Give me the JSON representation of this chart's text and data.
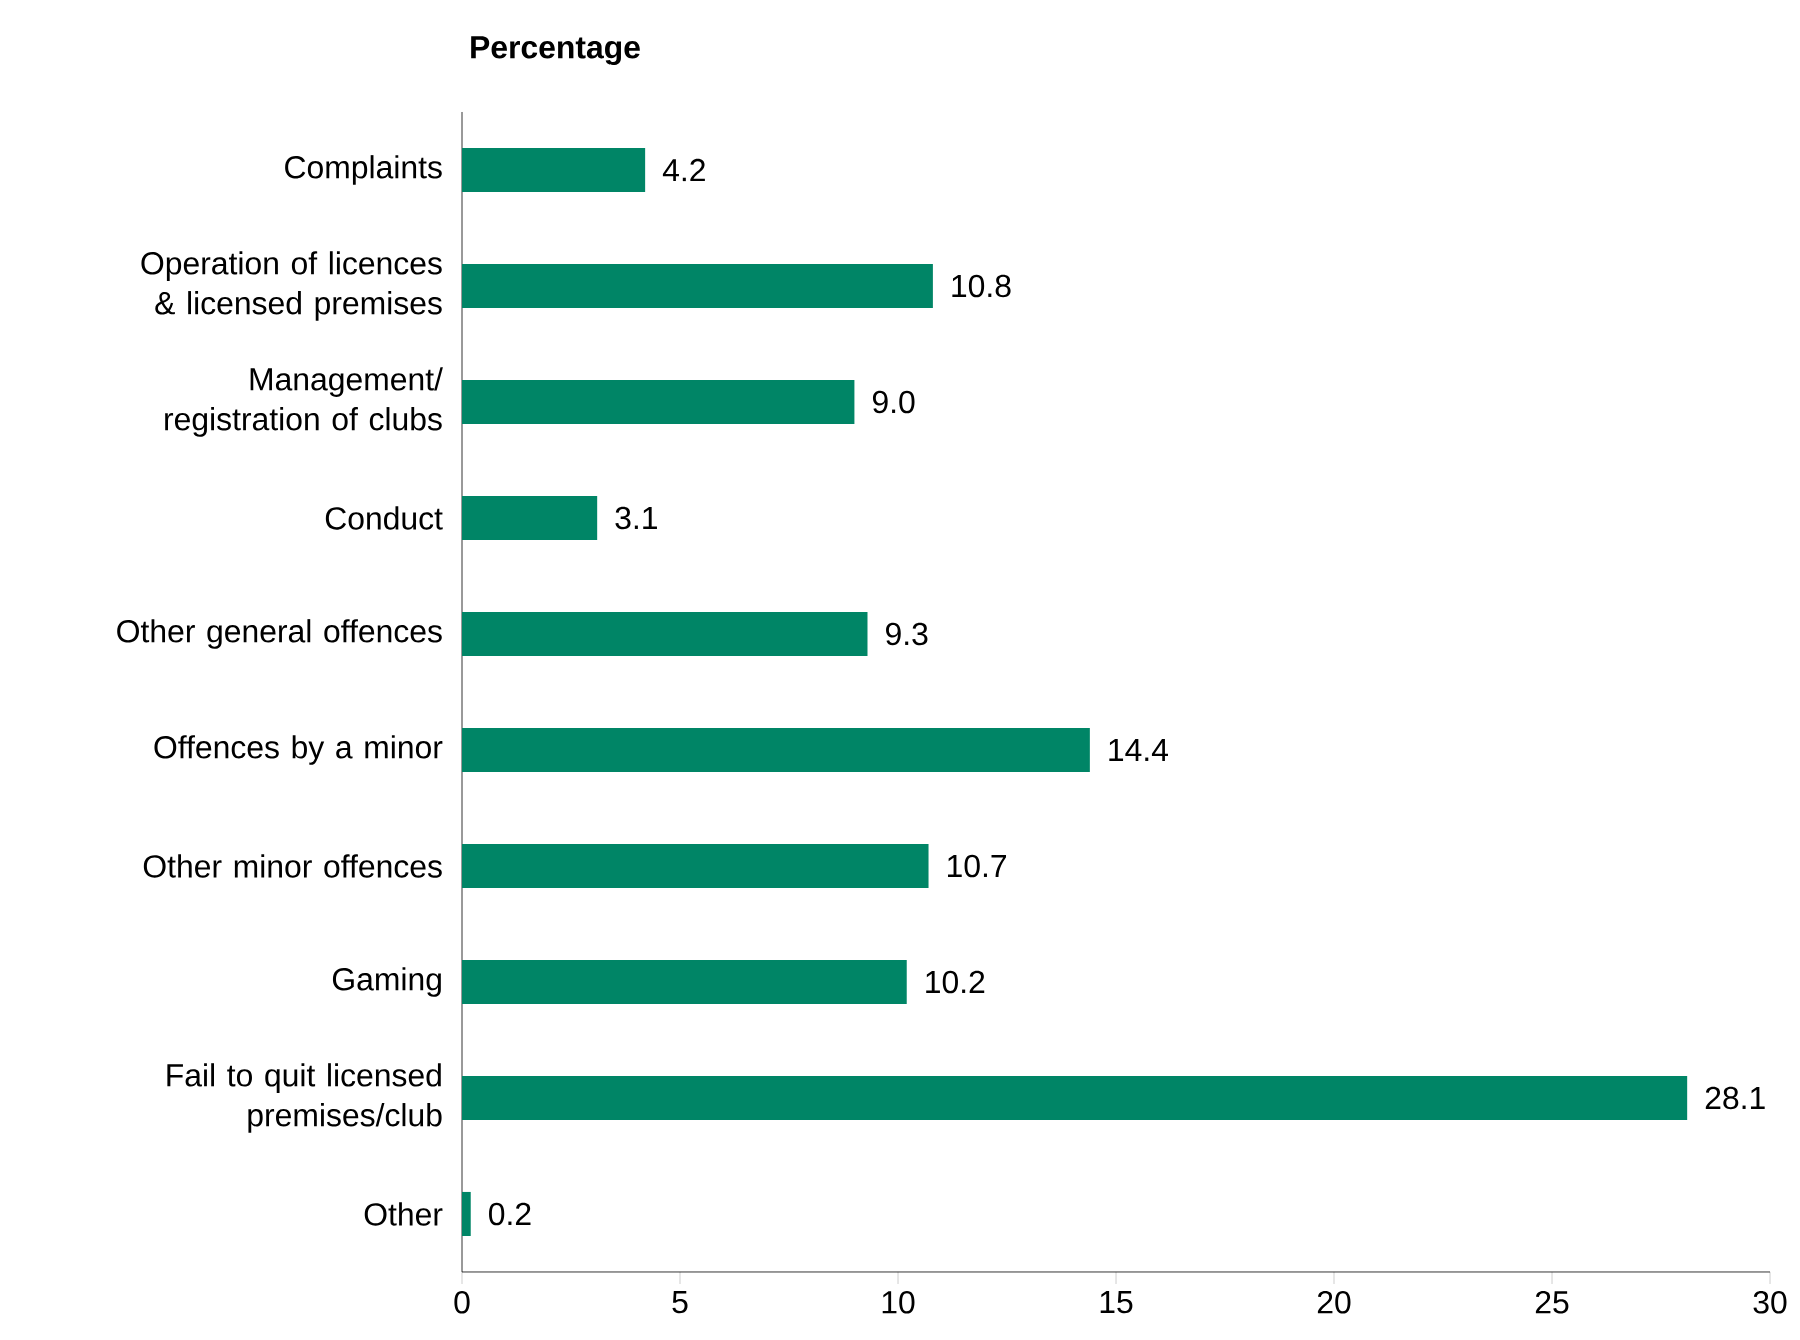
{
  "chart_data": {
    "type": "bar",
    "orientation": "horizontal",
    "title": "Percentage",
    "categories": [
      "Complaints",
      "Operation of licences & licensed premises",
      "Management/ registration of clubs",
      "Conduct",
      "Other general offences",
      "Offences by a minor",
      "Other minor offences",
      "Gaming",
      "Fail to quit licensed premises/club",
      "Other"
    ],
    "values": [
      4.2,
      10.8,
      9.0,
      3.1,
      9.3,
      14.4,
      10.7,
      10.2,
      28.1,
      0.2
    ],
    "value_labels": [
      "4.2",
      "10.8",
      "9.0",
      "3.1",
      "9.3",
      "14.4",
      "10.7",
      "10.2",
      "28.1",
      "0.2"
    ],
    "color": "#008566",
    "xlim": [
      0,
      30
    ],
    "xticks": [
      0,
      5,
      10,
      15,
      20,
      25,
      30
    ],
    "grid": false
  }
}
